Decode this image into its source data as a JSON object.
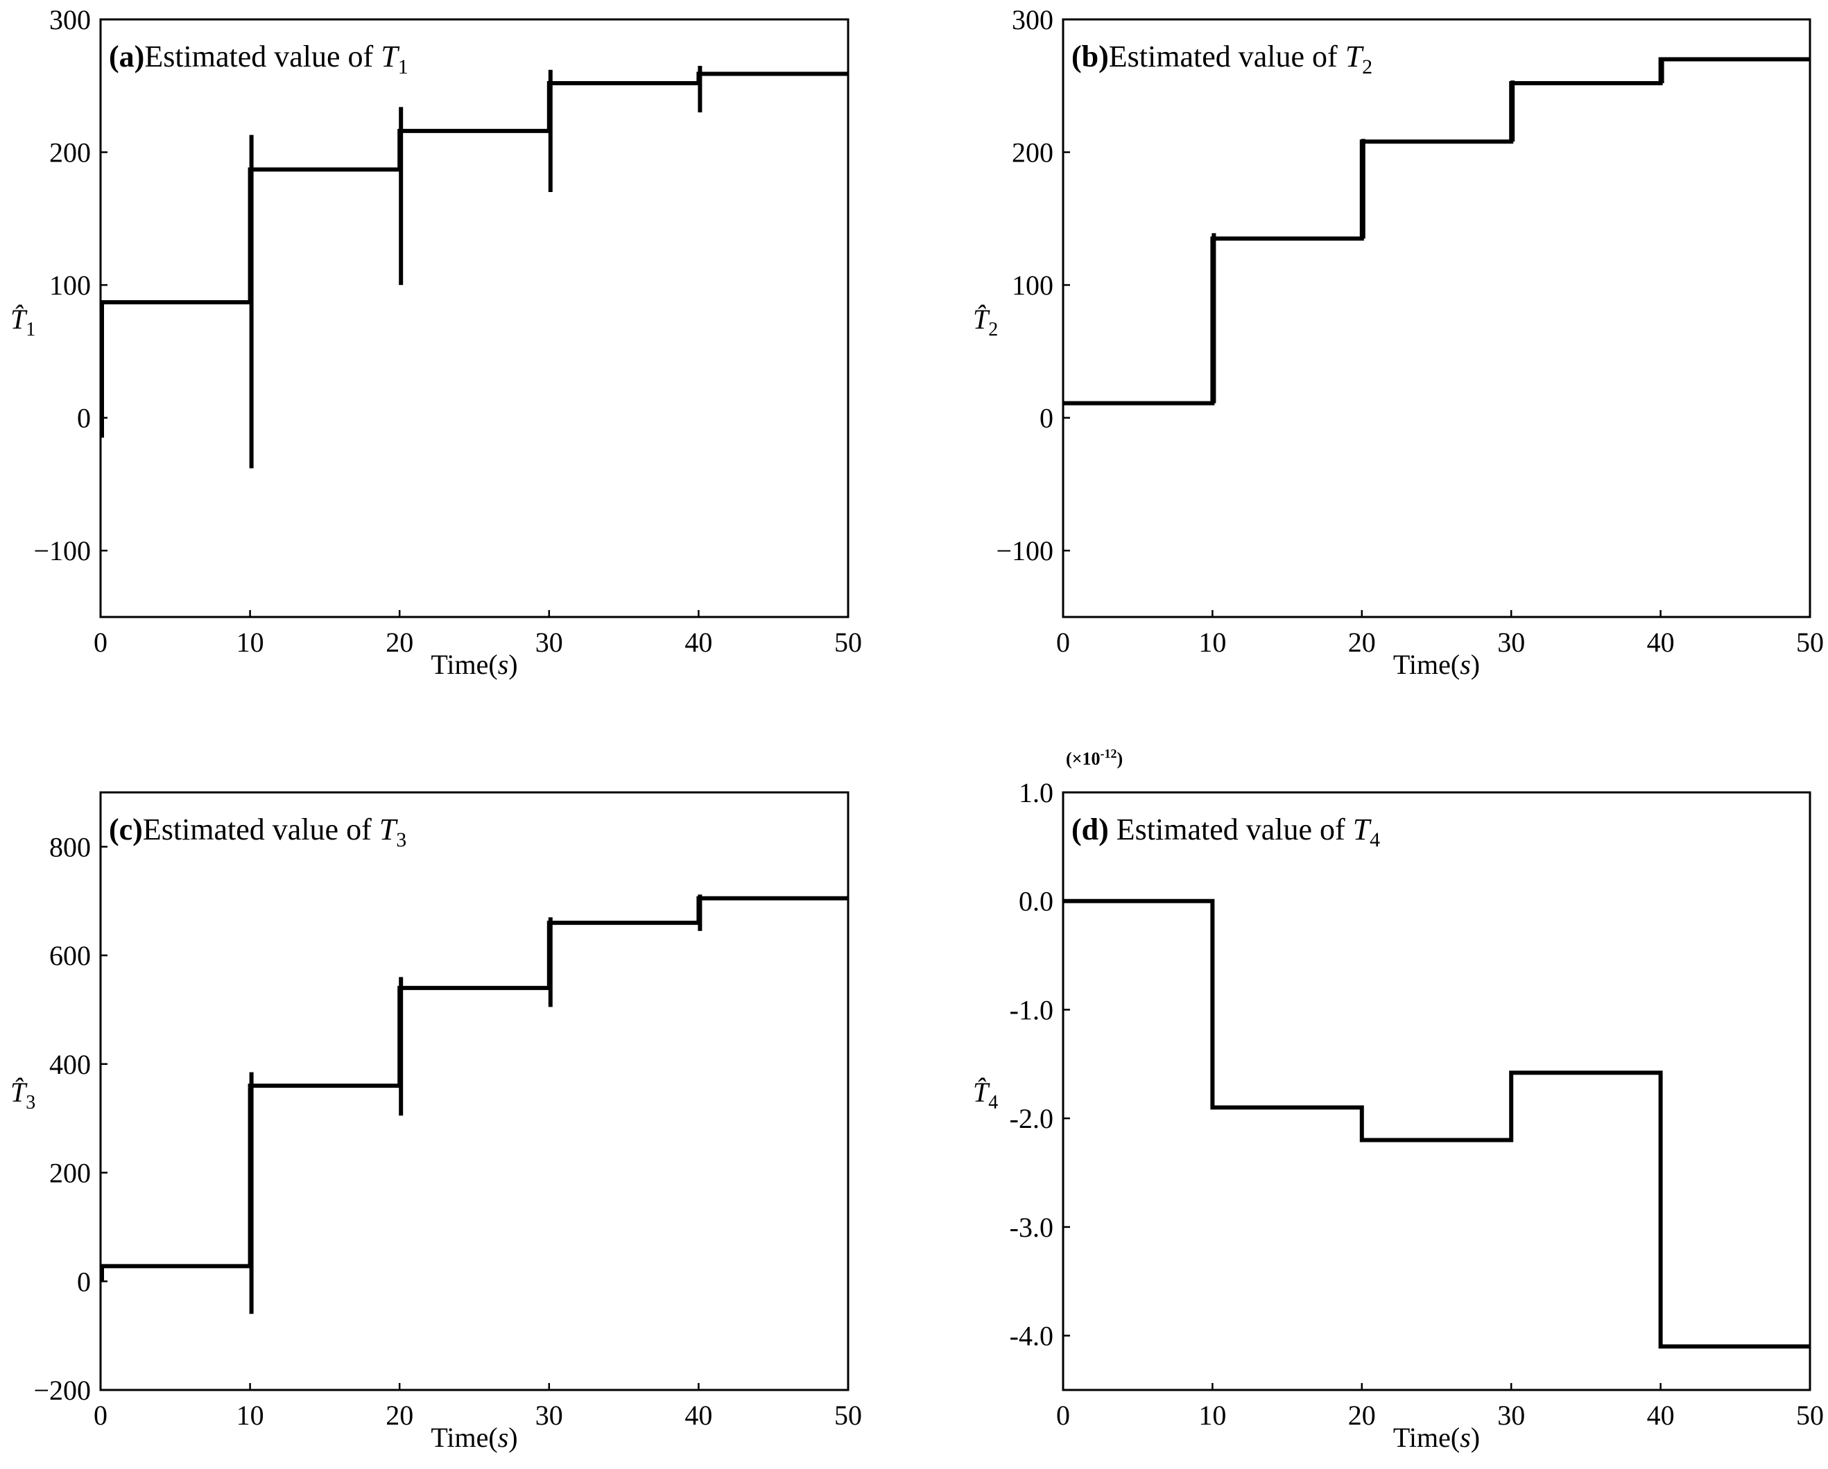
{
  "chart_data": [
    {
      "id": "a",
      "type": "line",
      "title_prefix": "(a)",
      "title_text": "Estimated value of ",
      "title_var": "T",
      "title_sub": "1",
      "xlabel": "Time(",
      "xlabel_var": "s",
      "xlabel_end": ")",
      "ylabel_var": "T̂",
      "ylabel_sub": "1",
      "xlim": [
        0,
        50
      ],
      "ylim": [
        -150,
        300
      ],
      "xticks": [
        0,
        10,
        20,
        30,
        40,
        50
      ],
      "xtick_labels": [
        "0",
        "10",
        "20",
        "30",
        "40",
        "50"
      ],
      "yticks": [
        -100,
        0,
        100,
        200,
        300
      ],
      "ytick_labels": [
        "−100",
        "0",
        "100",
        "200",
        "300"
      ],
      "steps": [
        {
          "x0": 0,
          "x1": 10,
          "y": 87
        },
        {
          "x0": 10,
          "x1": 20,
          "y": 187
        },
        {
          "x0": 20,
          "x1": 30,
          "y": 216
        },
        {
          "x0": 30,
          "x1": 40,
          "y": 252
        },
        {
          "x0": 40,
          "x1": 50,
          "y": 259
        }
      ],
      "spikes": [
        {
          "x": 0,
          "ymin": -15,
          "ymax": 87
        },
        {
          "x": 10,
          "ymin": -38,
          "ymax": 213
        },
        {
          "x": 20,
          "ymin": 100,
          "ymax": 234
        },
        {
          "x": 30,
          "ymin": 170,
          "ymax": 262
        },
        {
          "x": 40,
          "ymin": 230,
          "ymax": 265
        }
      ]
    },
    {
      "id": "b",
      "type": "line",
      "title_prefix": "(b)",
      "title_text": "Estimated value of ",
      "title_var": "T",
      "title_sub": "2",
      "xlabel": "Time(",
      "xlabel_var": "s",
      "xlabel_end": ")",
      "ylabel_var": "T̂",
      "ylabel_sub": "2",
      "xlim": [
        0,
        50
      ],
      "ylim": [
        -150,
        300
      ],
      "xticks": [
        0,
        10,
        20,
        30,
        40,
        50
      ],
      "xtick_labels": [
        "0",
        "10",
        "20",
        "30",
        "40",
        "50"
      ],
      "yticks": [
        -100,
        0,
        100,
        200,
        300
      ],
      "ytick_labels": [
        "−100",
        "0",
        "100",
        "200",
        "300"
      ],
      "steps": [
        {
          "x0": 0,
          "x1": 10,
          "y": 11
        },
        {
          "x0": 10,
          "x1": 20,
          "y": 135
        },
        {
          "x0": 20,
          "x1": 30,
          "y": 208
        },
        {
          "x0": 30,
          "x1": 40,
          "y": 252
        },
        {
          "x0": 40,
          "x1": 50,
          "y": 270
        }
      ],
      "spikes": [
        {
          "x": 10,
          "ymin": 11,
          "ymax": 139
        },
        {
          "x": 20,
          "ymin": 135,
          "ymax": 210
        },
        {
          "x": 30,
          "ymin": 208,
          "ymax": 254
        },
        {
          "x": 40,
          "ymin": 252,
          "ymax": 271
        }
      ]
    },
    {
      "id": "c",
      "type": "line",
      "title_prefix": "(c)",
      "title_text": "Estimated value of ",
      "title_var": "T",
      "title_sub": "3",
      "xlabel": "Time(",
      "xlabel_var": "s",
      "xlabel_end": ")",
      "ylabel_var": "T̂",
      "ylabel_sub": "3",
      "xlim": [
        0,
        50
      ],
      "ylim": [
        -200,
        900
      ],
      "xticks": [
        0,
        10,
        20,
        30,
        40,
        50
      ],
      "xtick_labels": [
        "0",
        "10",
        "20",
        "30",
        "40",
        "50"
      ],
      "yticks": [
        -200,
        0,
        200,
        400,
        600,
        800
      ],
      "ytick_labels": [
        "−200",
        "0",
        "200",
        "400",
        "600",
        "800"
      ],
      "steps": [
        {
          "x0": 0,
          "x1": 10,
          "y": 28
        },
        {
          "x0": 10,
          "x1": 20,
          "y": 360
        },
        {
          "x0": 20,
          "x1": 30,
          "y": 540
        },
        {
          "x0": 30,
          "x1": 40,
          "y": 660
        },
        {
          "x0": 40,
          "x1": 50,
          "y": 705
        }
      ],
      "spikes": [
        {
          "x": 0,
          "ymin": 0,
          "ymax": 28
        },
        {
          "x": 10,
          "ymin": -60,
          "ymax": 385
        },
        {
          "x": 20,
          "ymin": 305,
          "ymax": 560
        },
        {
          "x": 30,
          "ymin": 505,
          "ymax": 670
        },
        {
          "x": 40,
          "ymin": 645,
          "ymax": 712
        }
      ]
    },
    {
      "id": "d",
      "type": "line",
      "title_prefix": "(d)",
      "title_text": " Estimated value of ",
      "title_var": "T",
      "title_sub": "4",
      "xlabel": "Time(",
      "xlabel_var": "s",
      "xlabel_end": ")",
      "ylabel_var": "T̂",
      "ylabel_sub": "4",
      "multiplier": "(×10",
      "multiplier_exp": "-12",
      "multiplier_end": ")",
      "xlim": [
        0,
        50
      ],
      "ylim": [
        -4.5,
        1.0
      ],
      "xticks": [
        0,
        10,
        20,
        30,
        40,
        50
      ],
      "xtick_labels": [
        "0",
        "10",
        "20",
        "30",
        "40",
        "50"
      ],
      "yticks": [
        -4.0,
        -3.0,
        -2.0,
        -1.0,
        0.0,
        1.0
      ],
      "ytick_labels": [
        "-4.0",
        "-3.0",
        "-2.0",
        "-1.0",
        "0.0",
        "1.0"
      ],
      "steps": [
        {
          "x0": 0,
          "x1": 10,
          "y": 0.0
        },
        {
          "x0": 10,
          "x1": 20,
          "y": -1.9
        },
        {
          "x0": 20,
          "x1": 30,
          "y": -2.2
        },
        {
          "x0": 30,
          "x1": 40,
          "y": -1.58
        },
        {
          "x0": 40,
          "x1": 50,
          "y": -4.1
        }
      ],
      "spikes": []
    }
  ]
}
